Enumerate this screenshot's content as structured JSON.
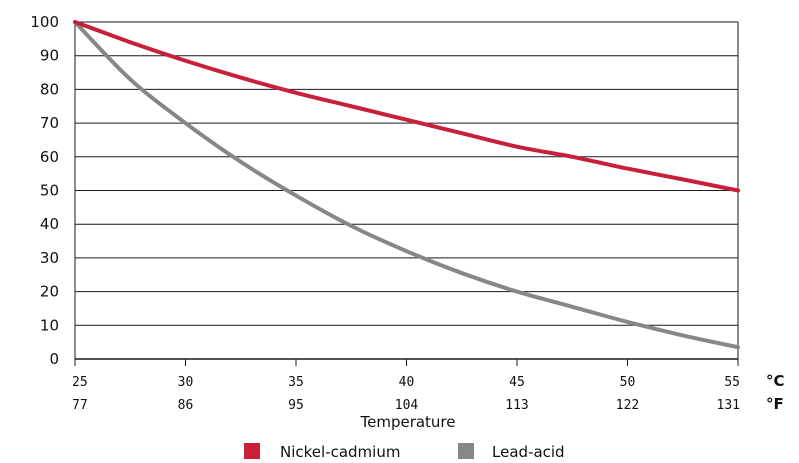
{
  "chart_data": {
    "type": "line",
    "xlabel": "Temperature",
    "ylabel": "",
    "x_ticks_c": [
      "25",
      "30",
      "35",
      "40",
      "45",
      "50",
      "55"
    ],
    "x_ticks_f": [
      "77",
      "86",
      "95",
      "104",
      "113",
      "122",
      "131"
    ],
    "x_unit_c": "°C",
    "x_unit_f": "°F",
    "xlim": [
      25,
      55
    ],
    "ylim": [
      0,
      100
    ],
    "y_ticks": [
      "0",
      "10",
      "20",
      "30",
      "40",
      "50",
      "60",
      "70",
      "80",
      "90",
      "100"
    ],
    "grid": "horizontal",
    "legend_position": "bottom",
    "series": [
      {
        "name": "Nickel-cadmium",
        "color": "#c8203a",
        "x": [
          25,
          27.5,
          30,
          32.5,
          35,
          37.5,
          40,
          42.5,
          45,
          47.5,
          50,
          52.5,
          55
        ],
        "y": [
          100,
          94,
          88.5,
          83.5,
          79,
          75,
          71,
          67,
          63,
          60,
          56.5,
          53.3,
          50
        ]
      },
      {
        "name": "Lead-acid",
        "color": "#878787",
        "x": [
          25,
          27.5,
          30,
          32.5,
          35,
          37.5,
          40,
          42.5,
          45,
          47.5,
          50,
          52.5,
          55
        ],
        "y": [
          100,
          83,
          70,
          58.5,
          48.5,
          39.5,
          32,
          25.5,
          20,
          15.5,
          11,
          7,
          3.5
        ]
      }
    ]
  }
}
